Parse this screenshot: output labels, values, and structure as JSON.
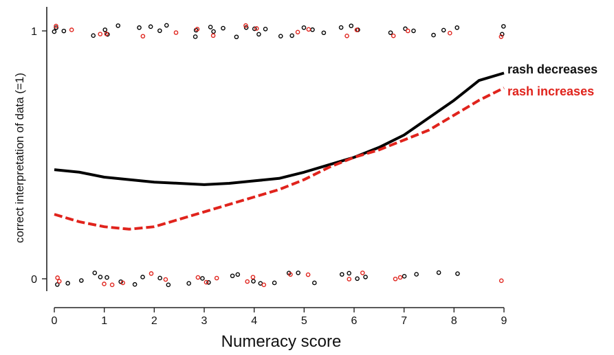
{
  "chart_data": {
    "type": "scatter",
    "title": "",
    "xlabel": "Numeracy score",
    "ylabel": "correct interpretation of data (=1)",
    "xlim": [
      0,
      9
    ],
    "ylim": [
      0,
      1
    ],
    "x_ticks": [
      "0",
      "1",
      "2",
      "3",
      "4",
      "5",
      "6",
      "7",
      "8",
      "9"
    ],
    "y_ticks": [
      "0",
      "1"
    ],
    "grid": false,
    "legend_placement": "right",
    "series": [
      {
        "name": "rash decreases",
        "color": "#000000",
        "line_style": "solid",
        "x": [
          0,
          0.5,
          1,
          1.5,
          2,
          2.5,
          3,
          3.5,
          4,
          4.5,
          5,
          5.5,
          6,
          6.5,
          7,
          7.5,
          8,
          8.5,
          9
        ],
        "y": [
          0.44,
          0.43,
          0.41,
          0.4,
          0.39,
          0.385,
          0.38,
          0.385,
          0.395,
          0.405,
          0.43,
          0.46,
          0.49,
          0.53,
          0.58,
          0.65,
          0.72,
          0.8,
          0.83
        ]
      },
      {
        "name": "rash increases",
        "color": "#e0231c",
        "line_style": "dashed",
        "x": [
          0,
          0.5,
          1,
          1.5,
          2,
          2.5,
          3,
          3.5,
          4,
          4.5,
          5,
          5.5,
          6,
          6.5,
          7,
          7.5,
          8,
          8.5,
          9
        ],
        "y": [
          0.26,
          0.23,
          0.21,
          0.2,
          0.21,
          0.24,
          0.27,
          0.3,
          0.33,
          0.36,
          0.4,
          0.45,
          0.49,
          0.52,
          0.56,
          0.6,
          0.66,
          0.72,
          0.77
        ]
      }
    ],
    "jitter_points": {
      "black": [
        [
          0,
          1
        ],
        [
          0.1,
          1
        ],
        [
          0.2,
          1
        ],
        [
          0.85,
          1
        ],
        [
          1,
          1
        ],
        [
          1.1,
          1
        ],
        [
          1.25,
          1
        ],
        [
          1.7,
          1
        ],
        [
          1.9,
          1
        ],
        [
          2.1,
          1
        ],
        [
          2.3,
          1
        ],
        [
          2.75,
          1
        ],
        [
          2.9,
          1
        ],
        [
          3.05,
          1
        ],
        [
          3.2,
          1
        ],
        [
          3.35,
          1
        ],
        [
          3.7,
          1
        ],
        [
          3.85,
          1
        ],
        [
          4,
          1
        ],
        [
          4.15,
          1
        ],
        [
          4.25,
          1
        ],
        [
          4.6,
          1
        ],
        [
          4.8,
          1
        ],
        [
          5,
          1
        ],
        [
          5.15,
          1
        ],
        [
          5.35,
          1
        ],
        [
          5.8,
          1
        ],
        [
          5.95,
          1
        ],
        [
          6.15,
          1
        ],
        [
          6.7,
          1
        ],
        [
          6.95,
          1
        ],
        [
          7.2,
          1
        ],
        [
          7.6,
          1
        ],
        [
          7.8,
          1
        ],
        [
          8.1,
          1
        ],
        [
          8.95,
          1
        ],
        [
          9,
          1
        ],
        [
          0,
          0
        ],
        [
          0.2,
          0
        ],
        [
          0.5,
          0
        ],
        [
          0.8,
          0
        ],
        [
          0.95,
          0
        ],
        [
          1.1,
          0
        ],
        [
          1.3,
          0
        ],
        [
          1.65,
          0
        ],
        [
          1.85,
          0
        ],
        [
          2.1,
          0
        ],
        [
          2.35,
          0
        ],
        [
          2.7,
          0
        ],
        [
          2.95,
          0
        ],
        [
          3.15,
          0
        ],
        [
          3.5,
          0
        ],
        [
          3.75,
          0
        ],
        [
          3.95,
          0
        ],
        [
          4.1,
          0
        ],
        [
          4.45,
          0
        ],
        [
          4.75,
          0
        ],
        [
          4.95,
          0
        ],
        [
          5.2,
          0
        ],
        [
          5.7,
          0
        ],
        [
          5.9,
          0
        ],
        [
          6.1,
          0
        ],
        [
          6.3,
          0
        ],
        [
          7.05,
          0
        ],
        [
          7.2,
          0
        ],
        [
          7.75,
          0
        ],
        [
          8.05,
          0
        ]
      ],
      "red": [
        [
          0.05,
          1
        ],
        [
          0.35,
          1
        ],
        [
          1,
          1
        ],
        [
          1.05,
          1
        ],
        [
          1.8,
          1
        ],
        [
          2.4,
          1
        ],
        [
          2.9,
          1
        ],
        [
          3.25,
          1
        ],
        [
          3.9,
          1
        ],
        [
          4.1,
          1
        ],
        [
          4.95,
          1
        ],
        [
          5.1,
          1
        ],
        [
          5.85,
          1
        ],
        [
          6.05,
          1
        ],
        [
          6.85,
          1
        ],
        [
          7.05,
          1
        ],
        [
          7.85,
          1
        ],
        [
          8.95,
          1
        ],
        [
          0,
          0
        ],
        [
          0.1,
          0
        ],
        [
          0.95,
          0
        ],
        [
          1.15,
          0
        ],
        [
          1.35,
          0
        ],
        [
          1.95,
          0
        ],
        [
          2.15,
          0
        ],
        [
          2.85,
          0
        ],
        [
          3,
          0
        ],
        [
          3.25,
          0
        ],
        [
          3.8,
          0
        ],
        [
          4.05,
          0
        ],
        [
          4.2,
          0
        ],
        [
          4.7,
          0
        ],
        [
          5.05,
          0
        ],
        [
          5.95,
          0
        ],
        [
          6.2,
          0
        ],
        [
          6.75,
          0
        ],
        [
          7,
          0
        ],
        [
          9,
          0
        ]
      ]
    }
  }
}
